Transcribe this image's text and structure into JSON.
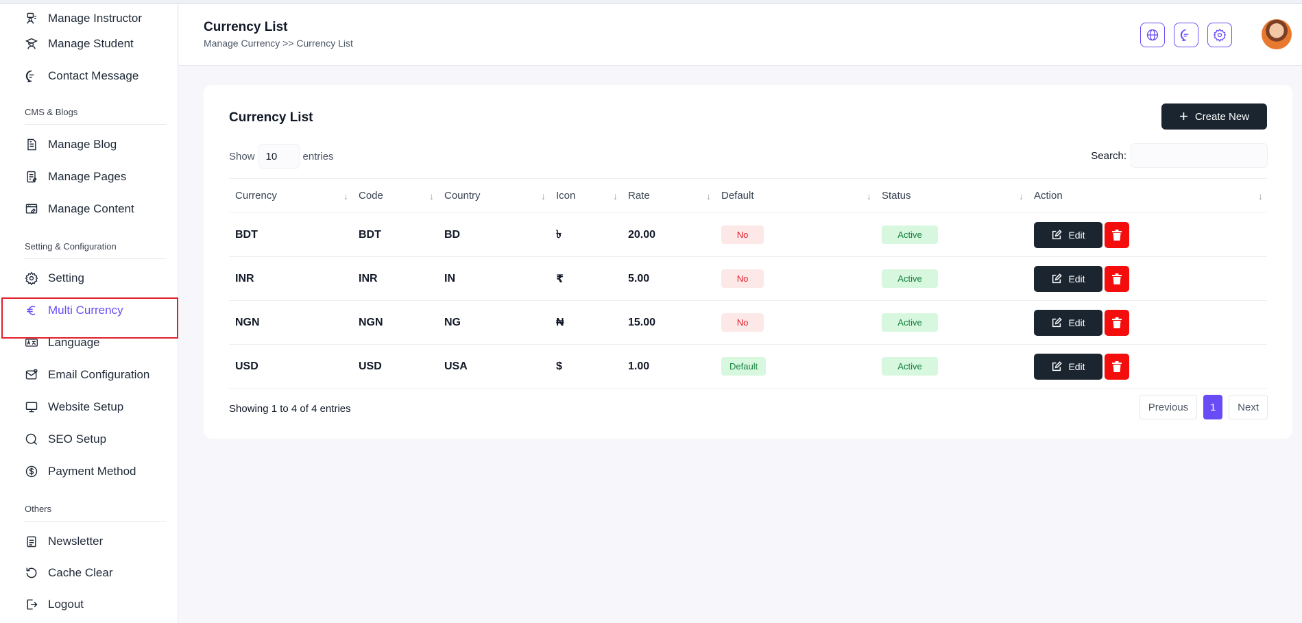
{
  "sidebar": {
    "items_top": [
      {
        "label": "Manage Instructor",
        "icon": "instructor-icon"
      },
      {
        "label": "Manage Student",
        "icon": "student-icon"
      },
      {
        "label": "Contact Message",
        "icon": "message-icon"
      }
    ],
    "section_cms": "CMS & Blogs",
    "items_cms": [
      {
        "label": "Manage Blog",
        "icon": "blog-icon"
      },
      {
        "label": "Manage Pages",
        "icon": "pages-icon"
      },
      {
        "label": "Manage Content",
        "icon": "content-icon"
      }
    ],
    "section_settings": "Setting & Configuration",
    "items_settings": [
      {
        "label": "Setting",
        "icon": "gear-icon"
      },
      {
        "label": "Multi Currency",
        "icon": "euro-icon",
        "active": true
      },
      {
        "label": "Language",
        "icon": "language-icon"
      },
      {
        "label": "Email Configuration",
        "icon": "email-icon"
      },
      {
        "label": "Website Setup",
        "icon": "monitor-icon"
      },
      {
        "label": "SEO Setup",
        "icon": "search-icon"
      },
      {
        "label": "Payment Method",
        "icon": "dollar-icon"
      }
    ],
    "section_others": "Others",
    "items_others": [
      {
        "label": "Newsletter",
        "icon": "newsletter-icon"
      },
      {
        "label": "Cache Clear",
        "icon": "refresh-icon"
      },
      {
        "label": "Logout",
        "icon": "logout-icon"
      }
    ]
  },
  "header": {
    "title": "Currency List",
    "breadcrumb": "Manage Currency >> Currency List",
    "icons": [
      "globe-icon",
      "chat-icon",
      "gear-icon"
    ]
  },
  "card": {
    "title": "Currency List",
    "create_label": "Create New",
    "show_label": "Show",
    "entries_value": "10",
    "entries_label": "entries",
    "search_label": "Search:",
    "search_value": "",
    "columns": [
      "Currency",
      "Code",
      "Country",
      "Icon",
      "Rate",
      "Default",
      "Status",
      "Action"
    ],
    "rows": [
      {
        "currency": "BDT",
        "code": "BDT",
        "country": "BD",
        "icon": "৳",
        "rate": "20.00",
        "default": "No",
        "status": "Active"
      },
      {
        "currency": "INR",
        "code": "INR",
        "country": "IN",
        "icon": "₹",
        "rate": "5.00",
        "default": "No",
        "status": "Active"
      },
      {
        "currency": "NGN",
        "code": "NGN",
        "country": "NG",
        "icon": "₦",
        "rate": "15.00",
        "default": "No",
        "status": "Active"
      },
      {
        "currency": "USD",
        "code": "USD",
        "country": "USA",
        "icon": "$",
        "rate": "1.00",
        "default": "Default",
        "status": "Active"
      }
    ],
    "edit_label": "Edit",
    "showing_text": "Showing 1 to 4 of 4 entries",
    "pager": {
      "previous": "Previous",
      "current": "1",
      "next": "Next"
    }
  },
  "colors": {
    "accent": "#6a4cf6",
    "dark": "#1a2530",
    "danger": "#f40d0d"
  }
}
